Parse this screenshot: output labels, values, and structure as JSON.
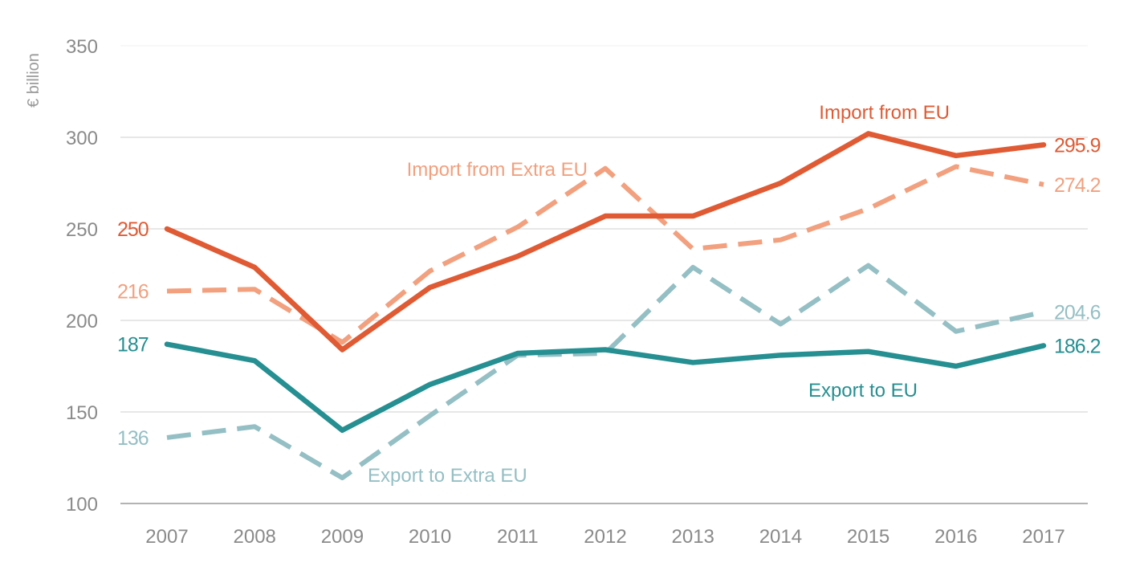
{
  "chart_data": {
    "type": "line",
    "ylabel": "€ billion",
    "ylim": [
      100,
      350
    ],
    "yticks": [
      100,
      150,
      200,
      250,
      300,
      350
    ],
    "x": [
      "2007",
      "2008",
      "2009",
      "2010",
      "2011",
      "2012",
      "2013",
      "2014",
      "2015",
      "2016",
      "2017"
    ],
    "grid": "horizontal",
    "series": [
      {
        "name": "Import from EU",
        "color": "#e05a33",
        "dashed": false,
        "values": [
          250,
          229,
          184,
          218,
          235,
          257,
          257,
          275,
          302,
          290,
          295.9
        ],
        "start_label": "250",
        "end_label": "295.9"
      },
      {
        "name": "Import from Extra EU",
        "color": "#f2a07e",
        "dashed": true,
        "values": [
          216,
          217,
          188,
          227,
          251,
          283,
          239,
          244,
          261,
          284,
          274.2
        ],
        "start_label": "216",
        "end_label": "274.2"
      },
      {
        "name": "Export to EU",
        "color": "#258f91",
        "dashed": false,
        "values": [
          187,
          178,
          140,
          165,
          182,
          184,
          177,
          181,
          183,
          175,
          186.2
        ],
        "start_label": "187",
        "end_label": "186.2"
      },
      {
        "name": "Export to Extra EU",
        "color": "#94bfc4",
        "dashed": true,
        "values": [
          136,
          142,
          114,
          148,
          181,
          182,
          229,
          198,
          230,
          194,
          204.6
        ],
        "start_label": "136",
        "end_label": "204.6"
      }
    ]
  }
}
